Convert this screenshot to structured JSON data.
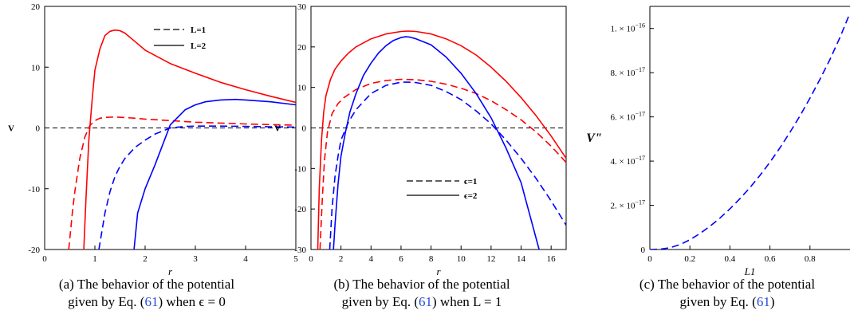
{
  "chart_data": [
    {
      "type": "line",
      "xlabel": "r",
      "ylabel": "V",
      "xlim": [
        0,
        5
      ],
      "ylim": [
        -20,
        20
      ],
      "xticks": [
        0,
        1,
        2,
        3,
        4,
        5
      ],
      "yticks": [
        -20,
        -10,
        0,
        10,
        20
      ],
      "hline": 0,
      "legend": [
        {
          "label": "L=1",
          "dash": "dashed"
        },
        {
          "label": "L=2",
          "dash": "solid"
        }
      ],
      "series": [
        {
          "color": "#ff0000",
          "dash": "dashed",
          "x": [
            0.48,
            0.55,
            0.6,
            0.7,
            0.8,
            0.9,
            1.0,
            1.1,
            1.2,
            1.4,
            1.6,
            1.8,
            2.0,
            2.5,
            3.0,
            3.5,
            4.0,
            4.5,
            5.0
          ],
          "y": [
            -20,
            -14,
            -10.5,
            -5,
            -1.5,
            0.4,
            1.2,
            1.6,
            1.75,
            1.8,
            1.7,
            1.6,
            1.45,
            1.2,
            0.95,
            0.8,
            0.65,
            0.55,
            0.45
          ]
        },
        {
          "color": "#ff0000",
          "dash": "solid",
          "x": [
            0.78,
            0.82,
            0.88,
            0.95,
            1.0,
            1.1,
            1.2,
            1.3,
            1.4,
            1.5,
            1.6,
            1.8,
            2.0,
            2.5,
            3.0,
            3.5,
            4.0,
            4.5,
            5.0
          ],
          "y": [
            -20,
            -12,
            -2,
            5,
            9.5,
            13,
            15.2,
            15.9,
            16.1,
            16,
            15.6,
            14.2,
            12.8,
            10.6,
            9.0,
            7.5,
            6.3,
            5.2,
            4.2
          ]
        },
        {
          "color": "#0000ff",
          "dash": "dashed",
          "x": [
            1.08,
            1.2,
            1.3,
            1.4,
            1.5,
            1.6,
            1.8,
            2.0,
            2.2,
            2.5,
            2.8,
            3.0,
            3.5,
            4.0,
            4.5,
            5.0
          ],
          "y": [
            -20,
            -14,
            -10.5,
            -8,
            -6.3,
            -5,
            -3.2,
            -2,
            -1,
            0,
            0.25,
            0.3,
            0.3,
            0.25,
            0.2,
            0.15
          ]
        },
        {
          "color": "#0000ff",
          "dash": "solid",
          "x": [
            1.78,
            1.85,
            2.0,
            2.2,
            2.5,
            2.8,
            3.0,
            3.2,
            3.5,
            3.8,
            4.0,
            4.5,
            5.0
          ],
          "y": [
            -20,
            -14,
            -10,
            -6,
            0.5,
            3,
            3.8,
            4.3,
            4.6,
            4.7,
            4.6,
            4.3,
            3.8
          ]
        }
      ]
    },
    {
      "type": "line",
      "xlabel": "r",
      "ylabel": "V",
      "xlim": [
        0,
        17
      ],
      "ylim": [
        -30,
        30
      ],
      "xticks": [
        0,
        2,
        4,
        6,
        8,
        10,
        12,
        14,
        16
      ],
      "yticks": [
        -30,
        -20,
        -10,
        0,
        10,
        20,
        30
      ],
      "hline": 0,
      "legend": [
        {
          "label": "ϵ=1",
          "dash": "dashed"
        },
        {
          "label": "ϵ=2",
          "dash": "solid"
        }
      ],
      "series": [
        {
          "color": "#ff0000",
          "dash": "dashed",
          "x": [
            0.6,
            0.75,
            0.9,
            1.1,
            1.4,
            1.8,
            2.2,
            3,
            4,
            5,
            6,
            7,
            8,
            9,
            10,
            11,
            12,
            13,
            14,
            15,
            16,
            17
          ],
          "y": [
            -30,
            -18,
            -8,
            -1,
            3.5,
            6,
            7.5,
            9.5,
            11,
            11.7,
            12,
            11.9,
            11.5,
            10.8,
            9.8,
            8.5,
            6.7,
            4.5,
            2,
            -1,
            -4.5,
            -8.5
          ]
        },
        {
          "color": "#ff0000",
          "dash": "solid",
          "x": [
            0.45,
            0.55,
            0.7,
            0.85,
            1.0,
            1.3,
            1.6,
            2,
            2.5,
            3,
            4,
            5,
            6,
            6.5,
            7,
            8,
            9,
            10,
            11,
            12,
            13,
            14,
            15,
            16,
            17
          ],
          "y": [
            -30,
            -15,
            -3,
            4,
            8,
            12,
            14.5,
            16.5,
            18.5,
            20,
            22,
            23.2,
            23.8,
            23.9,
            23.8,
            23.2,
            22,
            20.3,
            18,
            15,
            11.5,
            7.5,
            3,
            -2,
            -7.5
          ]
        },
        {
          "color": "#0000ff",
          "dash": "dashed",
          "x": [
            1.25,
            1.4,
            1.6,
            1.8,
            2,
            2.5,
            3,
            4,
            5,
            6,
            6.5,
            7,
            8,
            9,
            10,
            11,
            12,
            13,
            14,
            15,
            16,
            17
          ],
          "y": [
            -30,
            -20,
            -12,
            -7,
            -3,
            1.5,
            4.5,
            8.5,
            10.5,
            11.3,
            11.3,
            11.2,
            10.5,
            9,
            7,
            4.2,
            1,
            -3,
            -7.5,
            -12.5,
            -18,
            -24
          ]
        },
        {
          "color": "#0000ff",
          "dash": "solid",
          "x": [
            1.5,
            1.6,
            1.8,
            2,
            2.3,
            2.6,
            3,
            3.5,
            4,
            4.5,
            5,
            5.5,
            6,
            6.3,
            6.6,
            7,
            8,
            9,
            10,
            11,
            12,
            13,
            14,
            15.2
          ],
          "y": [
            -30,
            -24,
            -14,
            -7,
            -1,
            4,
            8.5,
            13,
            16,
            18.5,
            20.3,
            21.6,
            22.3,
            22.5,
            22.4,
            22,
            20.5,
            17.5,
            13.5,
            8.5,
            2.5,
            -5,
            -13.5,
            -30
          ]
        }
      ]
    },
    {
      "type": "line",
      "xlabel": "L1",
      "ylabel": "V\"",
      "xlim": [
        0,
        1
      ],
      "ylim": [
        0,
        1.1e-16
      ],
      "xticks": [
        0,
        0.2,
        0.4,
        0.6,
        0.8
      ],
      "xtick_labels": [
        "0",
        "0.2",
        "0.4",
        "0.6",
        "0.8"
      ],
      "yticks": [
        0,
        2e-17,
        4e-17,
        6e-17,
        8e-17,
        1e-16
      ],
      "ytick_labels": [
        {
          "coef": "",
          "exp": ""
        },
        {
          "coef": "2. × 10",
          "exp": "−17"
        },
        {
          "coef": "4. × 10",
          "exp": "−17"
        },
        {
          "coef": "6. × 10",
          "exp": "−17"
        },
        {
          "coef": "8. × 10",
          "exp": "−17"
        },
        {
          "coef": "1. × 10",
          "exp": "−16"
        }
      ],
      "series": [
        {
          "color": "#0000ff",
          "dash": "dashed",
          "x": [
            0,
            0.05,
            0.1,
            0.15,
            0.2,
            0.25,
            0.3,
            0.35,
            0.4,
            0.45,
            0.5,
            0.55,
            0.6,
            0.65,
            0.7,
            0.75,
            0.8,
            0.85,
            0.9,
            0.95,
            1.0
          ],
          "y": [
            0,
            1.5e-19,
            8e-19,
            2.2e-18,
            4.4e-18,
            7.2e-18,
            1.05e-17,
            1.42e-17,
            1.84e-17,
            2.3e-17,
            2.8e-17,
            3.35e-17,
            3.95e-17,
            4.6e-17,
            5.3e-17,
            6.05e-17,
            6.85e-17,
            7.7e-17,
            8.6e-17,
            9.6e-17,
            1.07e-16
          ]
        }
      ]
    }
  ],
  "captions": [
    {
      "pre": "(a) The behavior of the potential",
      "mid": "given by Eq. (",
      "ref": "61",
      "post": ") when ϵ = 0"
    },
    {
      "pre": "(b) The behavior of the potential",
      "mid": "given by Eq. (",
      "ref": "61",
      "post": ") when L = 1"
    },
    {
      "pre": "(c) The behavior of the potential",
      "mid": "given by Eq. (",
      "ref": "61",
      "post": ")"
    }
  ]
}
